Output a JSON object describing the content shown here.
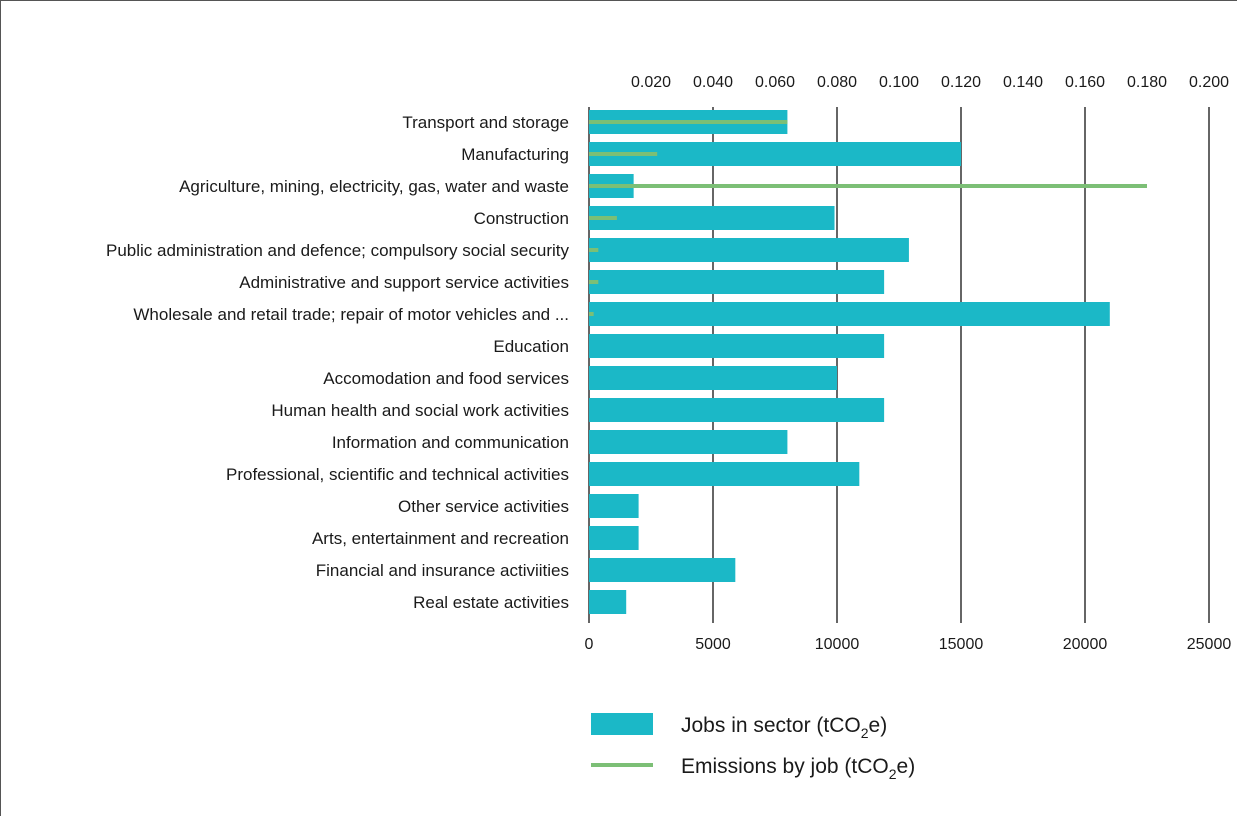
{
  "chart_data": {
    "type": "bar",
    "orientation": "horizontal",
    "categories": [
      "Transport and storage",
      "Manufacturing",
      "Agriculture, mining, electricity, gas, water and waste",
      "Construction",
      "Public administration and defence; compulsory social security",
      "Administrative and support service activities",
      "Wholesale and retail trade; repair of motor vehicles and ...",
      "Education",
      "Accomodation and food services",
      "Human health and social work activities",
      "Information and communication",
      "Professional, scientific and technical activities",
      "Other service activities",
      "Arts, entertainment and recreation",
      "Financial and insurance activiities",
      "Real estate activities"
    ],
    "series": [
      {
        "name": "Jobs in sector (tCO2e)",
        "type": "bar",
        "axis": "bottom",
        "values": [
          8000,
          15000,
          1800,
          9900,
          12900,
          11900,
          21000,
          11900,
          10000,
          11900,
          8000,
          10900,
          2000,
          2000,
          5900,
          1500
        ]
      },
      {
        "name": "Emissions by job (tCO2e)",
        "type": "line-bar",
        "axis": "top",
        "values": [
          0.064,
          0.022,
          0.18,
          0.009,
          0.003,
          0.003,
          0.0015,
          null,
          null,
          null,
          null,
          null,
          null,
          null,
          null,
          null
        ]
      }
    ],
    "bottom_axis": {
      "min": 0,
      "max": 25000,
      "ticks": [
        "0",
        "5000",
        "10000",
        "15000",
        "20000",
        "25000"
      ]
    },
    "top_axis": {
      "min": 0,
      "max": 0.2,
      "ticks": [
        "0.020",
        "0.040",
        "0.060",
        "0.080",
        "0.100",
        "0.120",
        "0.140",
        "0.160",
        "0.180",
        "0.200"
      ]
    },
    "grid": true,
    "legend_position": "bottom-center",
    "legend": {
      "bar": {
        "main": "Jobs in sector (tCO",
        "sub": "2",
        "end": "e)"
      },
      "line": {
        "main": "Emissions by job (tCO",
        "sub": "2",
        "end": "e)"
      }
    },
    "colors": {
      "bar": "#1bb8c7",
      "line": "#7cbf76",
      "grid": "#000000"
    }
  }
}
